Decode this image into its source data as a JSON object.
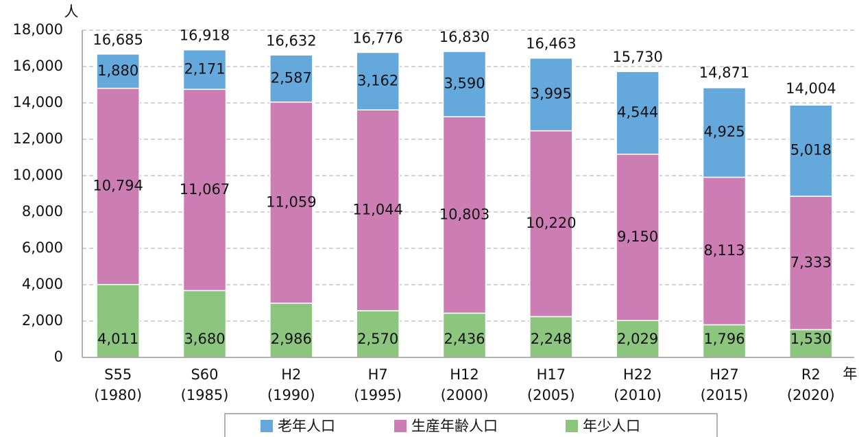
{
  "chart_data": {
    "type": "stacked_bar",
    "y_unit_label": "人",
    "x_unit_label": "年",
    "categories": [
      [
        "S55",
        "(1980)"
      ],
      [
        "S60",
        "(1985)"
      ],
      [
        "H2",
        "(1990)"
      ],
      [
        "H7",
        "(1995)"
      ],
      [
        "H12",
        "(2000)"
      ],
      [
        "H17",
        "(2005)"
      ],
      [
        "H22",
        "(2010)"
      ],
      [
        "H27",
        "(2015)"
      ],
      [
        "R2",
        "(2020)"
      ]
    ],
    "series": [
      {
        "name": "年少人口",
        "color": "#8cc67e",
        "values": [
          4011,
          3680,
          2986,
          2570,
          2436,
          2248,
          2029,
          1796,
          1530
        ],
        "value_labels": [
          "4,011",
          "3,680",
          "2,986",
          "2,570",
          "2,436",
          "2,248",
          "2,029",
          "1,796",
          "1,530"
        ]
      },
      {
        "name": "生産年齢人口",
        "color": "#cc7db4",
        "values": [
          10794,
          11067,
          11059,
          11044,
          10803,
          10220,
          9150,
          8113,
          7333
        ],
        "value_labels": [
          "10,794",
          "11,067",
          "11,059",
          "11,044",
          "10,803",
          "10,220",
          "9,150",
          "8,113",
          "7,333"
        ]
      },
      {
        "name": "老年人口",
        "color": "#64a8dc",
        "values": [
          1880,
          2171,
          2587,
          3162,
          3590,
          3995,
          4544,
          4925,
          5018
        ],
        "value_labels": [
          "1,880",
          "2,171",
          "2,587",
          "3,162",
          "3,590",
          "3,995",
          "4,544",
          "4,925",
          "5,018"
        ]
      }
    ],
    "totals": [
      16685,
      16918,
      16632,
      16776,
      16830,
      16463,
      15730,
      14871,
      14004
    ],
    "total_labels": [
      "16,685",
      "16,918",
      "16,632",
      "16,776",
      "16,830",
      "16,463",
      "15,730",
      "14,871",
      "14,004"
    ],
    "ylim": [
      0,
      18000
    ],
    "yticks": [
      0,
      {
        "value": 2000,
        "label": "2,000"
      },
      {
        "value": 4000,
        "label": "4,000"
      },
      {
        "value": 6000,
        "label": "6,000"
      },
      {
        "value": 8000,
        "label": "8,000"
      },
      {
        "value": 10000,
        "label": "10,000"
      },
      {
        "value": 12000,
        "label": "12,000"
      },
      {
        "value": 14000,
        "label": "14,000"
      },
      {
        "value": 16000,
        "label": "16,000"
      },
      {
        "value": 18000,
        "label": "18,000"
      }
    ],
    "grid": true,
    "legend_order": [
      2,
      1,
      0
    ]
  }
}
